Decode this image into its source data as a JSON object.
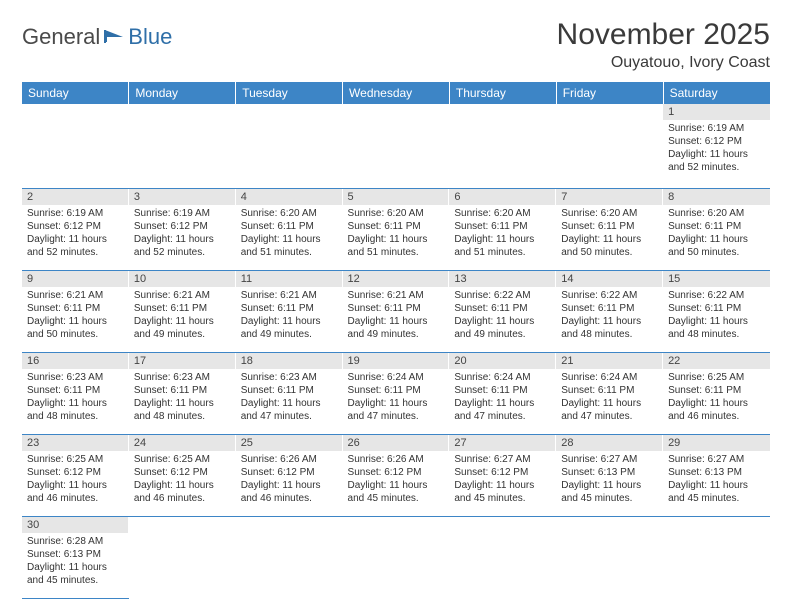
{
  "logo": {
    "text1": "General",
    "text2": "Blue"
  },
  "title": "November 2025",
  "location": "Ouyatouo, Ivory Coast",
  "colors": {
    "header_bg": "#3d85c6",
    "header_text": "#ffffff",
    "daynum_bg": "#e6e6e6",
    "cell_border": "#3d85c6",
    "logo_gray": "#4a4a4a",
    "logo_blue": "#2f6fa8"
  },
  "weekdays": [
    "Sunday",
    "Monday",
    "Tuesday",
    "Wednesday",
    "Thursday",
    "Friday",
    "Saturday"
  ],
  "weeks": [
    [
      {
        "day": "",
        "sunrise": "",
        "sunset": "",
        "daylight": ""
      },
      {
        "day": "",
        "sunrise": "",
        "sunset": "",
        "daylight": ""
      },
      {
        "day": "",
        "sunrise": "",
        "sunset": "",
        "daylight": ""
      },
      {
        "day": "",
        "sunrise": "",
        "sunset": "",
        "daylight": ""
      },
      {
        "day": "",
        "sunrise": "",
        "sunset": "",
        "daylight": ""
      },
      {
        "day": "",
        "sunrise": "",
        "sunset": "",
        "daylight": ""
      },
      {
        "day": "1",
        "sunrise": "Sunrise: 6:19 AM",
        "sunset": "Sunset: 6:12 PM",
        "daylight": "Daylight: 11 hours and 52 minutes."
      }
    ],
    [
      {
        "day": "2",
        "sunrise": "Sunrise: 6:19 AM",
        "sunset": "Sunset: 6:12 PM",
        "daylight": "Daylight: 11 hours and 52 minutes."
      },
      {
        "day": "3",
        "sunrise": "Sunrise: 6:19 AM",
        "sunset": "Sunset: 6:12 PM",
        "daylight": "Daylight: 11 hours and 52 minutes."
      },
      {
        "day": "4",
        "sunrise": "Sunrise: 6:20 AM",
        "sunset": "Sunset: 6:11 PM",
        "daylight": "Daylight: 11 hours and 51 minutes."
      },
      {
        "day": "5",
        "sunrise": "Sunrise: 6:20 AM",
        "sunset": "Sunset: 6:11 PM",
        "daylight": "Daylight: 11 hours and 51 minutes."
      },
      {
        "day": "6",
        "sunrise": "Sunrise: 6:20 AM",
        "sunset": "Sunset: 6:11 PM",
        "daylight": "Daylight: 11 hours and 51 minutes."
      },
      {
        "day": "7",
        "sunrise": "Sunrise: 6:20 AM",
        "sunset": "Sunset: 6:11 PM",
        "daylight": "Daylight: 11 hours and 50 minutes."
      },
      {
        "day": "8",
        "sunrise": "Sunrise: 6:20 AM",
        "sunset": "Sunset: 6:11 PM",
        "daylight": "Daylight: 11 hours and 50 minutes."
      }
    ],
    [
      {
        "day": "9",
        "sunrise": "Sunrise: 6:21 AM",
        "sunset": "Sunset: 6:11 PM",
        "daylight": "Daylight: 11 hours and 50 minutes."
      },
      {
        "day": "10",
        "sunrise": "Sunrise: 6:21 AM",
        "sunset": "Sunset: 6:11 PM",
        "daylight": "Daylight: 11 hours and 49 minutes."
      },
      {
        "day": "11",
        "sunrise": "Sunrise: 6:21 AM",
        "sunset": "Sunset: 6:11 PM",
        "daylight": "Daylight: 11 hours and 49 minutes."
      },
      {
        "day": "12",
        "sunrise": "Sunrise: 6:21 AM",
        "sunset": "Sunset: 6:11 PM",
        "daylight": "Daylight: 11 hours and 49 minutes."
      },
      {
        "day": "13",
        "sunrise": "Sunrise: 6:22 AM",
        "sunset": "Sunset: 6:11 PM",
        "daylight": "Daylight: 11 hours and 49 minutes."
      },
      {
        "day": "14",
        "sunrise": "Sunrise: 6:22 AM",
        "sunset": "Sunset: 6:11 PM",
        "daylight": "Daylight: 11 hours and 48 minutes."
      },
      {
        "day": "15",
        "sunrise": "Sunrise: 6:22 AM",
        "sunset": "Sunset: 6:11 PM",
        "daylight": "Daylight: 11 hours and 48 minutes."
      }
    ],
    [
      {
        "day": "16",
        "sunrise": "Sunrise: 6:23 AM",
        "sunset": "Sunset: 6:11 PM",
        "daylight": "Daylight: 11 hours and 48 minutes."
      },
      {
        "day": "17",
        "sunrise": "Sunrise: 6:23 AM",
        "sunset": "Sunset: 6:11 PM",
        "daylight": "Daylight: 11 hours and 48 minutes."
      },
      {
        "day": "18",
        "sunrise": "Sunrise: 6:23 AM",
        "sunset": "Sunset: 6:11 PM",
        "daylight": "Daylight: 11 hours and 47 minutes."
      },
      {
        "day": "19",
        "sunrise": "Sunrise: 6:24 AM",
        "sunset": "Sunset: 6:11 PM",
        "daylight": "Daylight: 11 hours and 47 minutes."
      },
      {
        "day": "20",
        "sunrise": "Sunrise: 6:24 AM",
        "sunset": "Sunset: 6:11 PM",
        "daylight": "Daylight: 11 hours and 47 minutes."
      },
      {
        "day": "21",
        "sunrise": "Sunrise: 6:24 AM",
        "sunset": "Sunset: 6:11 PM",
        "daylight": "Daylight: 11 hours and 47 minutes."
      },
      {
        "day": "22",
        "sunrise": "Sunrise: 6:25 AM",
        "sunset": "Sunset: 6:11 PM",
        "daylight": "Daylight: 11 hours and 46 minutes."
      }
    ],
    [
      {
        "day": "23",
        "sunrise": "Sunrise: 6:25 AM",
        "sunset": "Sunset: 6:12 PM",
        "daylight": "Daylight: 11 hours and 46 minutes."
      },
      {
        "day": "24",
        "sunrise": "Sunrise: 6:25 AM",
        "sunset": "Sunset: 6:12 PM",
        "daylight": "Daylight: 11 hours and 46 minutes."
      },
      {
        "day": "25",
        "sunrise": "Sunrise: 6:26 AM",
        "sunset": "Sunset: 6:12 PM",
        "daylight": "Daylight: 11 hours and 46 minutes."
      },
      {
        "day": "26",
        "sunrise": "Sunrise: 6:26 AM",
        "sunset": "Sunset: 6:12 PM",
        "daylight": "Daylight: 11 hours and 45 minutes."
      },
      {
        "day": "27",
        "sunrise": "Sunrise: 6:27 AM",
        "sunset": "Sunset: 6:12 PM",
        "daylight": "Daylight: 11 hours and 45 minutes."
      },
      {
        "day": "28",
        "sunrise": "Sunrise: 6:27 AM",
        "sunset": "Sunset: 6:13 PM",
        "daylight": "Daylight: 11 hours and 45 minutes."
      },
      {
        "day": "29",
        "sunrise": "Sunrise: 6:27 AM",
        "sunset": "Sunset: 6:13 PM",
        "daylight": "Daylight: 11 hours and 45 minutes."
      }
    ],
    [
      {
        "day": "30",
        "sunrise": "Sunrise: 6:28 AM",
        "sunset": "Sunset: 6:13 PM",
        "daylight": "Daylight: 11 hours and 45 minutes."
      },
      {
        "day": "",
        "sunrise": "",
        "sunset": "",
        "daylight": ""
      },
      {
        "day": "",
        "sunrise": "",
        "sunset": "",
        "daylight": ""
      },
      {
        "day": "",
        "sunrise": "",
        "sunset": "",
        "daylight": ""
      },
      {
        "day": "",
        "sunrise": "",
        "sunset": "",
        "daylight": ""
      },
      {
        "day": "",
        "sunrise": "",
        "sunset": "",
        "daylight": ""
      },
      {
        "day": "",
        "sunrise": "",
        "sunset": "",
        "daylight": ""
      }
    ]
  ]
}
